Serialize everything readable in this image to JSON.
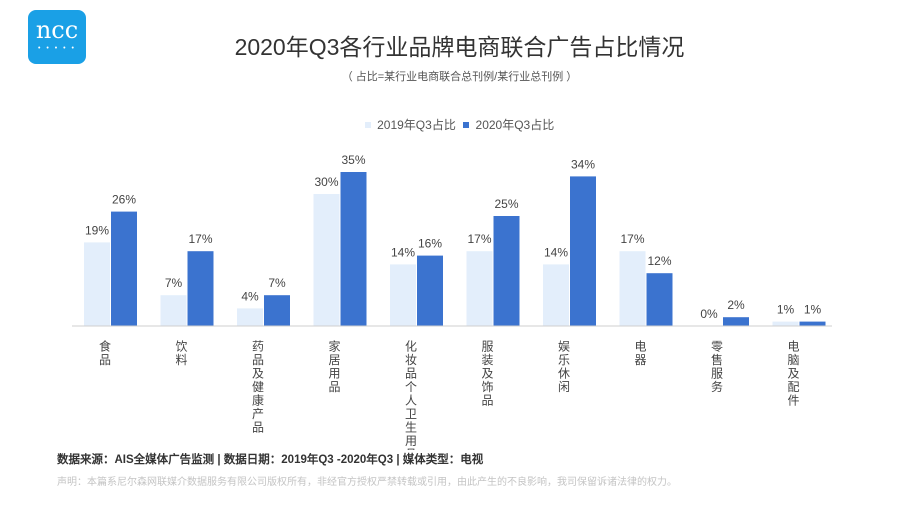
{
  "logo": {
    "text": "ncc",
    "dots": "• • • • •"
  },
  "header": {
    "title": "2020年Q3各行业品牌电商联合广告占比情况",
    "subtitle": "（ 占比=某行业电商联合总刊例/某行业总刊例 ）"
  },
  "footer": {
    "source": "数据来源：AIS全媒体广告监测  |  数据日期：2019年Q3 -2020年Q3  |  媒体类型：电视",
    "disclaimer": "声明：本篇系尼尔森网联媒介数据服务有限公司版权所有，非经官方授权严禁转载或引用，由此产生的不良影响，我司保留诉诸法律的权力。"
  },
  "chart_data": {
    "type": "bar",
    "title": "2020年Q3各行业品牌电商联合广告占比情况",
    "categories": [
      "食品",
      "饮料",
      "药品及健康产品",
      "家居用品",
      "化妆品个人卫生用品",
      "服装及饰品",
      "娱乐休闲",
      "电器",
      "零售服务",
      "电脑及配件"
    ],
    "series": [
      {
        "name": "2019年Q3占比",
        "values": [
          19,
          7,
          4,
          30,
          14,
          17,
          14,
          17,
          0,
          1
        ],
        "labels": [
          "19%",
          "7%",
          "4%",
          "30%",
          "14%",
          "17%",
          "14%",
          "17%",
          "0%",
          "1%"
        ]
      },
      {
        "name": "2020年Q3占比",
        "values": [
          26,
          17,
          7,
          35,
          16,
          25,
          34,
          12,
          2,
          1
        ],
        "labels": [
          "26%",
          "17%",
          "7%",
          "35%",
          "16%",
          "25%",
          "34%",
          "12%",
          "2%",
          "1%"
        ]
      }
    ],
    "colors": [
      "#e3eefb",
      "#3b73cf"
    ],
    "ylim": [
      0,
      35
    ],
    "grid": false,
    "legend": "top-center"
  }
}
